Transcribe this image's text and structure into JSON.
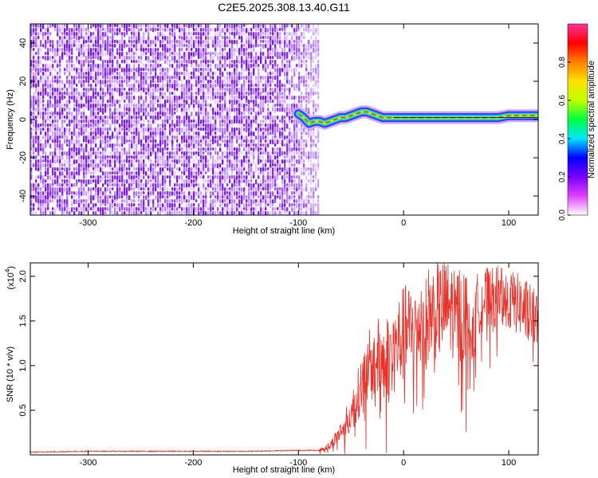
{
  "title": "C2E5.2025.308.13.40.G11",
  "chart_data": [
    {
      "type": "heatmap",
      "title": "C2E5.2025.308.13.40.G11",
      "xlabel": "Height of straight line (km)",
      "ylabel": "Frequency (Hz)",
      "xlim": [
        -355,
        128
      ],
      "ylim": [
        -50,
        50
      ],
      "xticks": [
        -300,
        -200,
        -100,
        0,
        100
      ],
      "yticks": [
        -40,
        -20,
        0,
        20,
        40
      ],
      "noise_region_x": [
        -355,
        -80
      ],
      "signal_trace": {
        "x": [
          -100,
          -95,
          -90,
          -85,
          -80,
          -75,
          -70,
          -65,
          -60,
          -55,
          -50,
          -45,
          -40,
          -35,
          -30,
          -25,
          -20,
          -15,
          -10,
          0,
          10,
          20,
          30,
          40,
          50,
          60,
          70,
          80,
          90,
          100,
          110,
          120,
          128
        ],
        "freq_hz": [
          3,
          1,
          -2,
          -1,
          -1,
          -2,
          -1,
          0,
          1,
          1,
          2,
          3,
          4,
          4,
          3,
          2,
          1,
          1,
          1,
          1,
          1,
          1,
          1,
          1,
          1,
          1,
          1,
          1,
          1,
          2,
          2,
          2,
          2
        ]
      },
      "colorbar": {
        "label": "Normalized spectral amplitude",
        "ticks": [
          "0.0",
          "0.2",
          "0.4",
          "0.6",
          "0.8"
        ],
        "range": [
          0,
          1
        ],
        "colors": [
          "#ffffff",
          "#e040ff",
          "#7a00ff",
          "#0000ff",
          "#00e5ff",
          "#00ff40",
          "#c0ff00",
          "#ffe000",
          "#ff8000",
          "#ff0000",
          "#ff3399"
        ]
      }
    },
    {
      "type": "line",
      "xlabel": "Height of straight line (km)",
      "ylabel": "SNR (10 * v/v)",
      "scale_label": "(x10",
      "scale_exp": "4",
      "scale_close": ")",
      "xlim": [
        -355,
        128
      ],
      "ylim": [
        0,
        2.15
      ],
      "xticks": [
        -300,
        -200,
        -100,
        0,
        100
      ],
      "yticks": [
        "0.5",
        "1.0",
        "1.5",
        "2.0"
      ],
      "ytick_values": [
        0.5,
        1.0,
        1.5,
        2.0
      ],
      "color": "#e8322a",
      "series": [
        {
          "name": "SNR",
          "x": [
            -355,
            -300,
            -250,
            -200,
            -150,
            -100,
            -80,
            -70,
            -60,
            -50,
            -40,
            -30,
            -20,
            -10,
            0,
            10,
            20,
            30,
            40,
            50,
            60,
            65,
            70,
            80,
            90,
            100,
            110,
            120,
            128
          ],
          "y": [
            0.03,
            0.04,
            0.04,
            0.04,
            0.04,
            0.05,
            0.05,
            0.1,
            0.25,
            0.45,
            0.75,
            1.0,
            1.05,
            1.1,
            1.3,
            1.35,
            1.5,
            1.55,
            1.6,
            1.55,
            1.5,
            1.25,
            1.65,
            1.72,
            1.75,
            1.7,
            1.65,
            1.55,
            1.45
          ]
        }
      ]
    }
  ]
}
